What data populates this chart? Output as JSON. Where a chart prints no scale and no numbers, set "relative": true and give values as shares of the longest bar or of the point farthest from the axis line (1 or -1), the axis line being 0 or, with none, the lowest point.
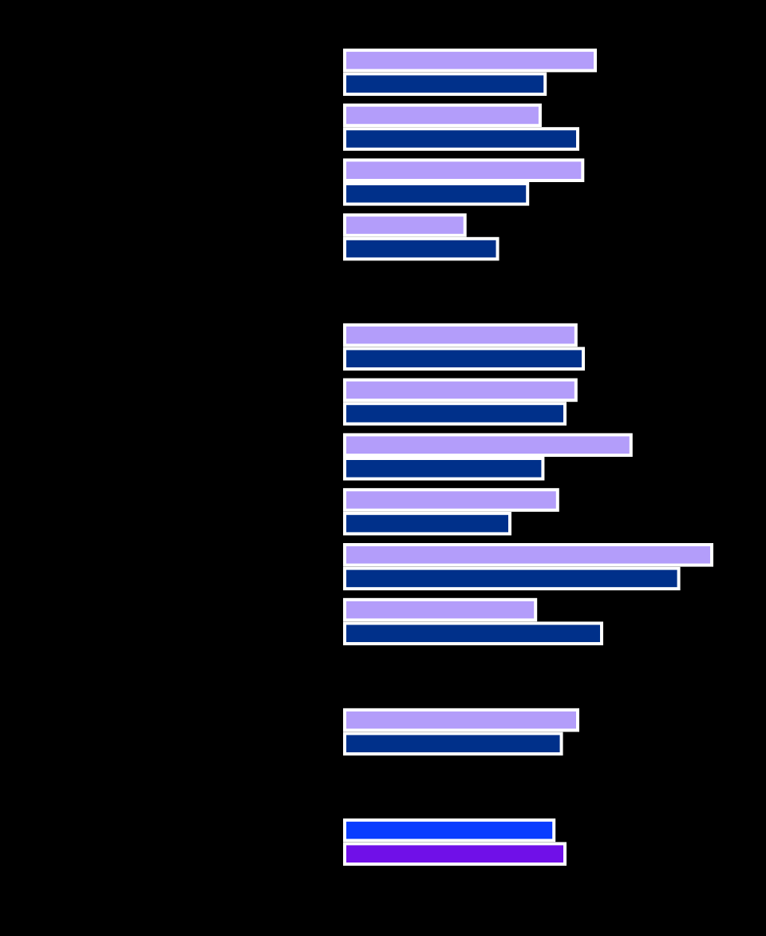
{
  "chart_data": [
    {
      "type": "bar",
      "orientation": "horizontal",
      "relative": true,
      "categories": [
        null,
        null,
        null,
        null
      ],
      "series": [
        {
          "color": "#b39dfa",
          "values": [
            1,
            0.78,
            0.95,
            0.48
          ]
        },
        {
          "color": "#00308a",
          "values": [
            0.8,
            0.93,
            0.73,
            0.61
          ]
        }
      ]
    },
    {
      "type": "bar",
      "orientation": "horizontal",
      "relative": true,
      "categories": [
        null,
        null,
        null,
        null,
        null,
        null
      ],
      "series": [
        {
          "color": "#b39dfa",
          "values": [
            0.63,
            0.63,
            0.78,
            0.58,
            1,
            0.52
          ]
        },
        {
          "color": "#00308a",
          "values": [
            0.65,
            0.6,
            0.54,
            0.45,
            0.91,
            0.7
          ]
        }
      ]
    },
    {
      "type": "bar",
      "orientation": "horizontal",
      "relative": true,
      "categories": [
        null
      ],
      "series": [
        {
          "color": "#b39dfa",
          "values": [
            1
          ]
        },
        {
          "color": "#00308a",
          "values": [
            0.93
          ]
        }
      ]
    },
    {
      "type": "bar",
      "orientation": "horizontal",
      "relative": true,
      "categories": [
        null
      ],
      "series": [
        {
          "color": "#0a3cff",
          "values": [
            0.95
          ]
        },
        {
          "color": "#7010e8",
          "values": [
            1
          ]
        }
      ]
    }
  ]
}
